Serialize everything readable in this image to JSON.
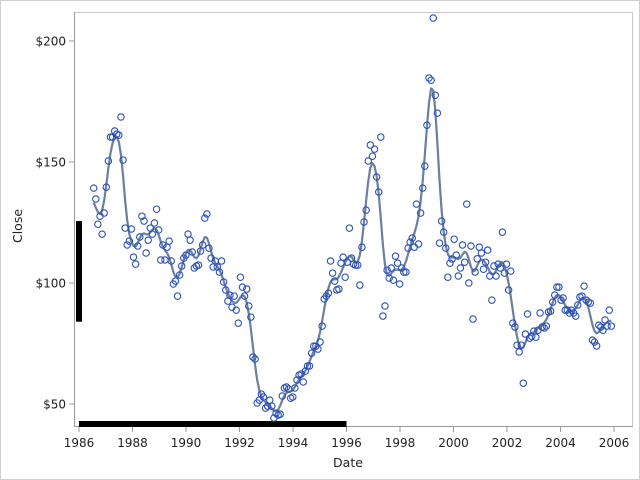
{
  "chart_data": {
    "type": "scatter",
    "title": "",
    "xlabel": "Date",
    "ylabel": "Close",
    "xlim": [
      1986,
      2006.5
    ],
    "ylim": [
      41,
      212
    ],
    "x_ticks": [
      1986,
      1988,
      1990,
      1992,
      1994,
      1996,
      1998,
      2000,
      2002,
      2004,
      2006
    ],
    "x_tick_labels": [
      "1986",
      "1988",
      "1990",
      "1992",
      "1994",
      "1996",
      "1998",
      "2000",
      "2002",
      "2004",
      "2006"
    ],
    "y_ticks": [
      50,
      100,
      150,
      200
    ],
    "y_tick_labels": [
      "$50",
      "$100",
      "$150",
      "$200"
    ],
    "grid": false,
    "legend": "none",
    "series": [
      {
        "name": "Close",
        "kind": "scatter-with-smooth-fit",
        "marker": "open-circle",
        "marker_color": "#2a50b8",
        "fit_color": "#6b7fa0"
      }
    ],
    "x_start": 1986.55,
    "x_end": 2005.9,
    "close": [
      139.2,
      134.7,
      124.3,
      127.6,
      120.2,
      128.9,
      139.6,
      150.4,
      160.3,
      160.3,
      162.8,
      161.5,
      161.1,
      168.6,
      150.8,
      122.7,
      115.7,
      117.3,
      122.3,
      110.7,
      107.8,
      115.3,
      119.0,
      127.6,
      125.6,
      112.4,
      117.7,
      122.7,
      120.2,
      124.8,
      130.5,
      121.9,
      109.5,
      115.7,
      109.5,
      114.8,
      117.3,
      109.1,
      99.6,
      100.8,
      94.6,
      103.3,
      107.0,
      110.3,
      111.5,
      120.2,
      117.7,
      112.8,
      106.2,
      107.0,
      107.4,
      113.2,
      115.7,
      126.8,
      128.5,
      114.4,
      110.3,
      106.6,
      109.1,
      106.6,
      104.5,
      109.1,
      100.4,
      97.1,
      92.5,
      95.0,
      90.0,
      94.6,
      88.8,
      83.4,
      102.4,
      98.3,
      94.6,
      97.5,
      90.5,
      85.9,
      69.4,
      68.6,
      50.4,
      51.6,
      54.1,
      52.9,
      48.3,
      49.1,
      51.6,
      49.1,
      44.2,
      46.2,
      45.4,
      45.8,
      53.3,
      56.6,
      57.0,
      56.2,
      52.4,
      52.9,
      56.6,
      59.9,
      61.9,
      62.4,
      59.1,
      63.6,
      65.7,
      65.7,
      71.0,
      73.9,
      73.9,
      72.7,
      75.6,
      82.2,
      93.4,
      94.6,
      95.8,
      109.1,
      104.1,
      100.8,
      97.1,
      97.5,
      108.2,
      110.7,
      102.4,
      108.6,
      122.7,
      110.3,
      107.8,
      107.4,
      107.4,
      99.1,
      114.8,
      125.2,
      130.1,
      150.4,
      157.0,
      152.4,
      155.3,
      143.8,
      137.6,
      160.3,
      86.3,
      90.5,
      105.3,
      102.0,
      106.2,
      101.2,
      111.1,
      108.2,
      99.6,
      106.2,
      104.5,
      104.5,
      114.4,
      116.9,
      118.6,
      114.8,
      132.6,
      116.1,
      128.9,
      139.2,
      148.3,
      165.2,
      184.7,
      183.8,
      209.5,
      177.6,
      170.2,
      116.5,
      125.6,
      121.0,
      114.4,
      102.4,
      108.2,
      109.9,
      118.1,
      111.5,
      102.9,
      106.2,
      115.7,
      108.6,
      132.6,
      100.0,
      115.3,
      85.1,
      104.5,
      110.0,
      114.8,
      112.4,
      105.7,
      108.6,
      113.6,
      102.9,
      92.9,
      107.0,
      102.9,
      107.8,
      106.2,
      121.0,
      104.1,
      107.8,
      97.1,
      104.9,
      83.4,
      81.8,
      74.3,
      71.5,
      74.3,
      58.6,
      78.9,
      87.2,
      77.2,
      78.0,
      80.1,
      77.6,
      80.5,
      87.6,
      81.8,
      81.4,
      82.2,
      88.0,
      88.4,
      92.1,
      95.0,
      98.3,
      98.3,
      92.9,
      93.8,
      88.8,
      88.8,
      87.6,
      88.8,
      87.6,
      86.3,
      90.9,
      94.2,
      94.6,
      98.7,
      92.9,
      92.1,
      91.7,
      76.4,
      75.6,
      74.0,
      82.6,
      81.8,
      80.5,
      84.7,
      82.2,
      88.8,
      82.2
    ],
    "highlight_x_range": [
      1986,
      1996
    ],
    "highlight_y_range": [
      84,
      125.6
    ],
    "highlight_color": "#000000"
  }
}
